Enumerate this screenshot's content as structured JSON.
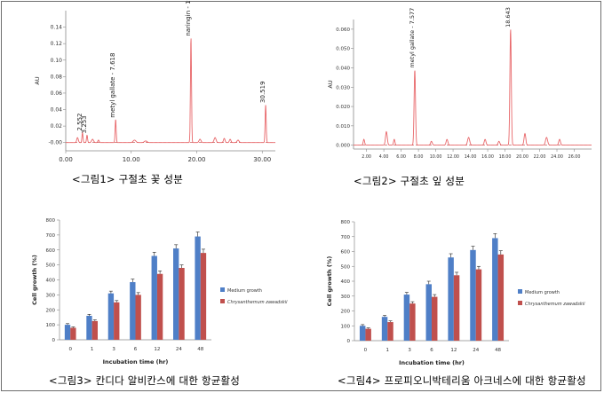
{
  "captions": {
    "fig1": "<그림1> 구절초 꽃 성분",
    "fig2": "<그림2> 구절초 잎 성분",
    "fig3": "<그림3> 칸디다 알비칸스에 대한 항균활성",
    "fig4": "<그림4> 프로피오니박테리움 아크네스에 대한 항균활성"
  },
  "colors": {
    "trace": "#e8676a",
    "medium": "#4f7fc7",
    "chrys": "#c0504d",
    "axis": "#8a8a8a"
  },
  "chart_data": [
    {
      "type": "line",
      "ylabel": "AU",
      "xlim": [
        0,
        32
      ],
      "ylim": [
        -0.01,
        0.16
      ],
      "x_ticks": [
        "0.00",
        "10.00",
        "20.00",
        "30.00"
      ],
      "y_ticks": [
        "-0.00",
        "0.02",
        "0.04",
        "0.06",
        "0.08",
        "0.10",
        "0.12",
        "0.14"
      ],
      "peaks": [
        {
          "rt": 2.552,
          "height": 0.012,
          "label": "2.552"
        },
        {
          "rt": 3.253,
          "height": 0.009,
          "label": "3.253"
        },
        {
          "rt": 7.618,
          "height": 0.028,
          "label": "metyl gallate - 7.618"
        },
        {
          "rt": 19.12,
          "height": 0.127,
          "label": "naringin - 19.120"
        },
        {
          "rt": 30.519,
          "height": 0.046,
          "label": "30.519"
        }
      ]
    },
    {
      "type": "line",
      "ylabel": "AU",
      "xlim": [
        0.5,
        28
      ],
      "ylim": [
        -0.002,
        0.065
      ],
      "x_ticks": [
        "2.00",
        "4.00",
        "6.00",
        "8.00",
        "10.00",
        "12.00",
        "14.00",
        "16.00",
        "18.00",
        "20.00",
        "22.00",
        "24.00",
        "26.00"
      ],
      "y_ticks": [
        "0.000",
        "0.010",
        "0.020",
        "0.030",
        "0.040",
        "0.050",
        "0.060"
      ],
      "peaks": [
        {
          "rt": 7.577,
          "height": 0.039,
          "label": "metyl gallate - 7.577"
        },
        {
          "rt": 18.643,
          "height": 0.06,
          "label": "18.643"
        }
      ]
    },
    {
      "type": "bar",
      "xlabel": "Incubation time (hr)",
      "ylabel": "Cell growth (%)",
      "ylim": [
        0,
        800
      ],
      "y_ticks": [
        "0",
        "100",
        "200",
        "300",
        "400",
        "500",
        "600",
        "700",
        "800"
      ],
      "categories": [
        "0",
        "1",
        "3",
        "6",
        "12",
        "24",
        "48"
      ],
      "legend_position": "right",
      "series": [
        {
          "name": "Medium growth",
          "values": [
            100,
            160,
            310,
            385,
            560,
            610,
            690
          ],
          "errors": [
            8,
            10,
            15,
            20,
            25,
            25,
            30
          ]
        },
        {
          "name": "Chrysanthemum zawadskii",
          "values": [
            80,
            125,
            250,
            300,
            440,
            480,
            580
          ],
          "errors": [
            6,
            8,
            12,
            15,
            20,
            20,
            25
          ]
        }
      ]
    },
    {
      "type": "bar",
      "xlabel": "Incubation time (hr)",
      "ylabel": "Cell growth (%)",
      "ylim": [
        0,
        800
      ],
      "y_ticks": [
        "0",
        "100",
        "200",
        "300",
        "400",
        "500",
        "600",
        "700",
        "800"
      ],
      "categories": [
        "0",
        "1",
        "3",
        "6",
        "12",
        "24",
        "48"
      ],
      "legend_position": "right",
      "series": [
        {
          "name": "Medium growth",
          "values": [
            100,
            160,
            310,
            380,
            560,
            610,
            690
          ],
          "errors": [
            8,
            10,
            15,
            20,
            25,
            25,
            30
          ]
        },
        {
          "name": "Chrysanthemum zawadskii",
          "values": [
            80,
            125,
            250,
            295,
            440,
            480,
            580
          ],
          "errors": [
            6,
            8,
            12,
            15,
            20,
            20,
            25
          ]
        }
      ]
    }
  ]
}
